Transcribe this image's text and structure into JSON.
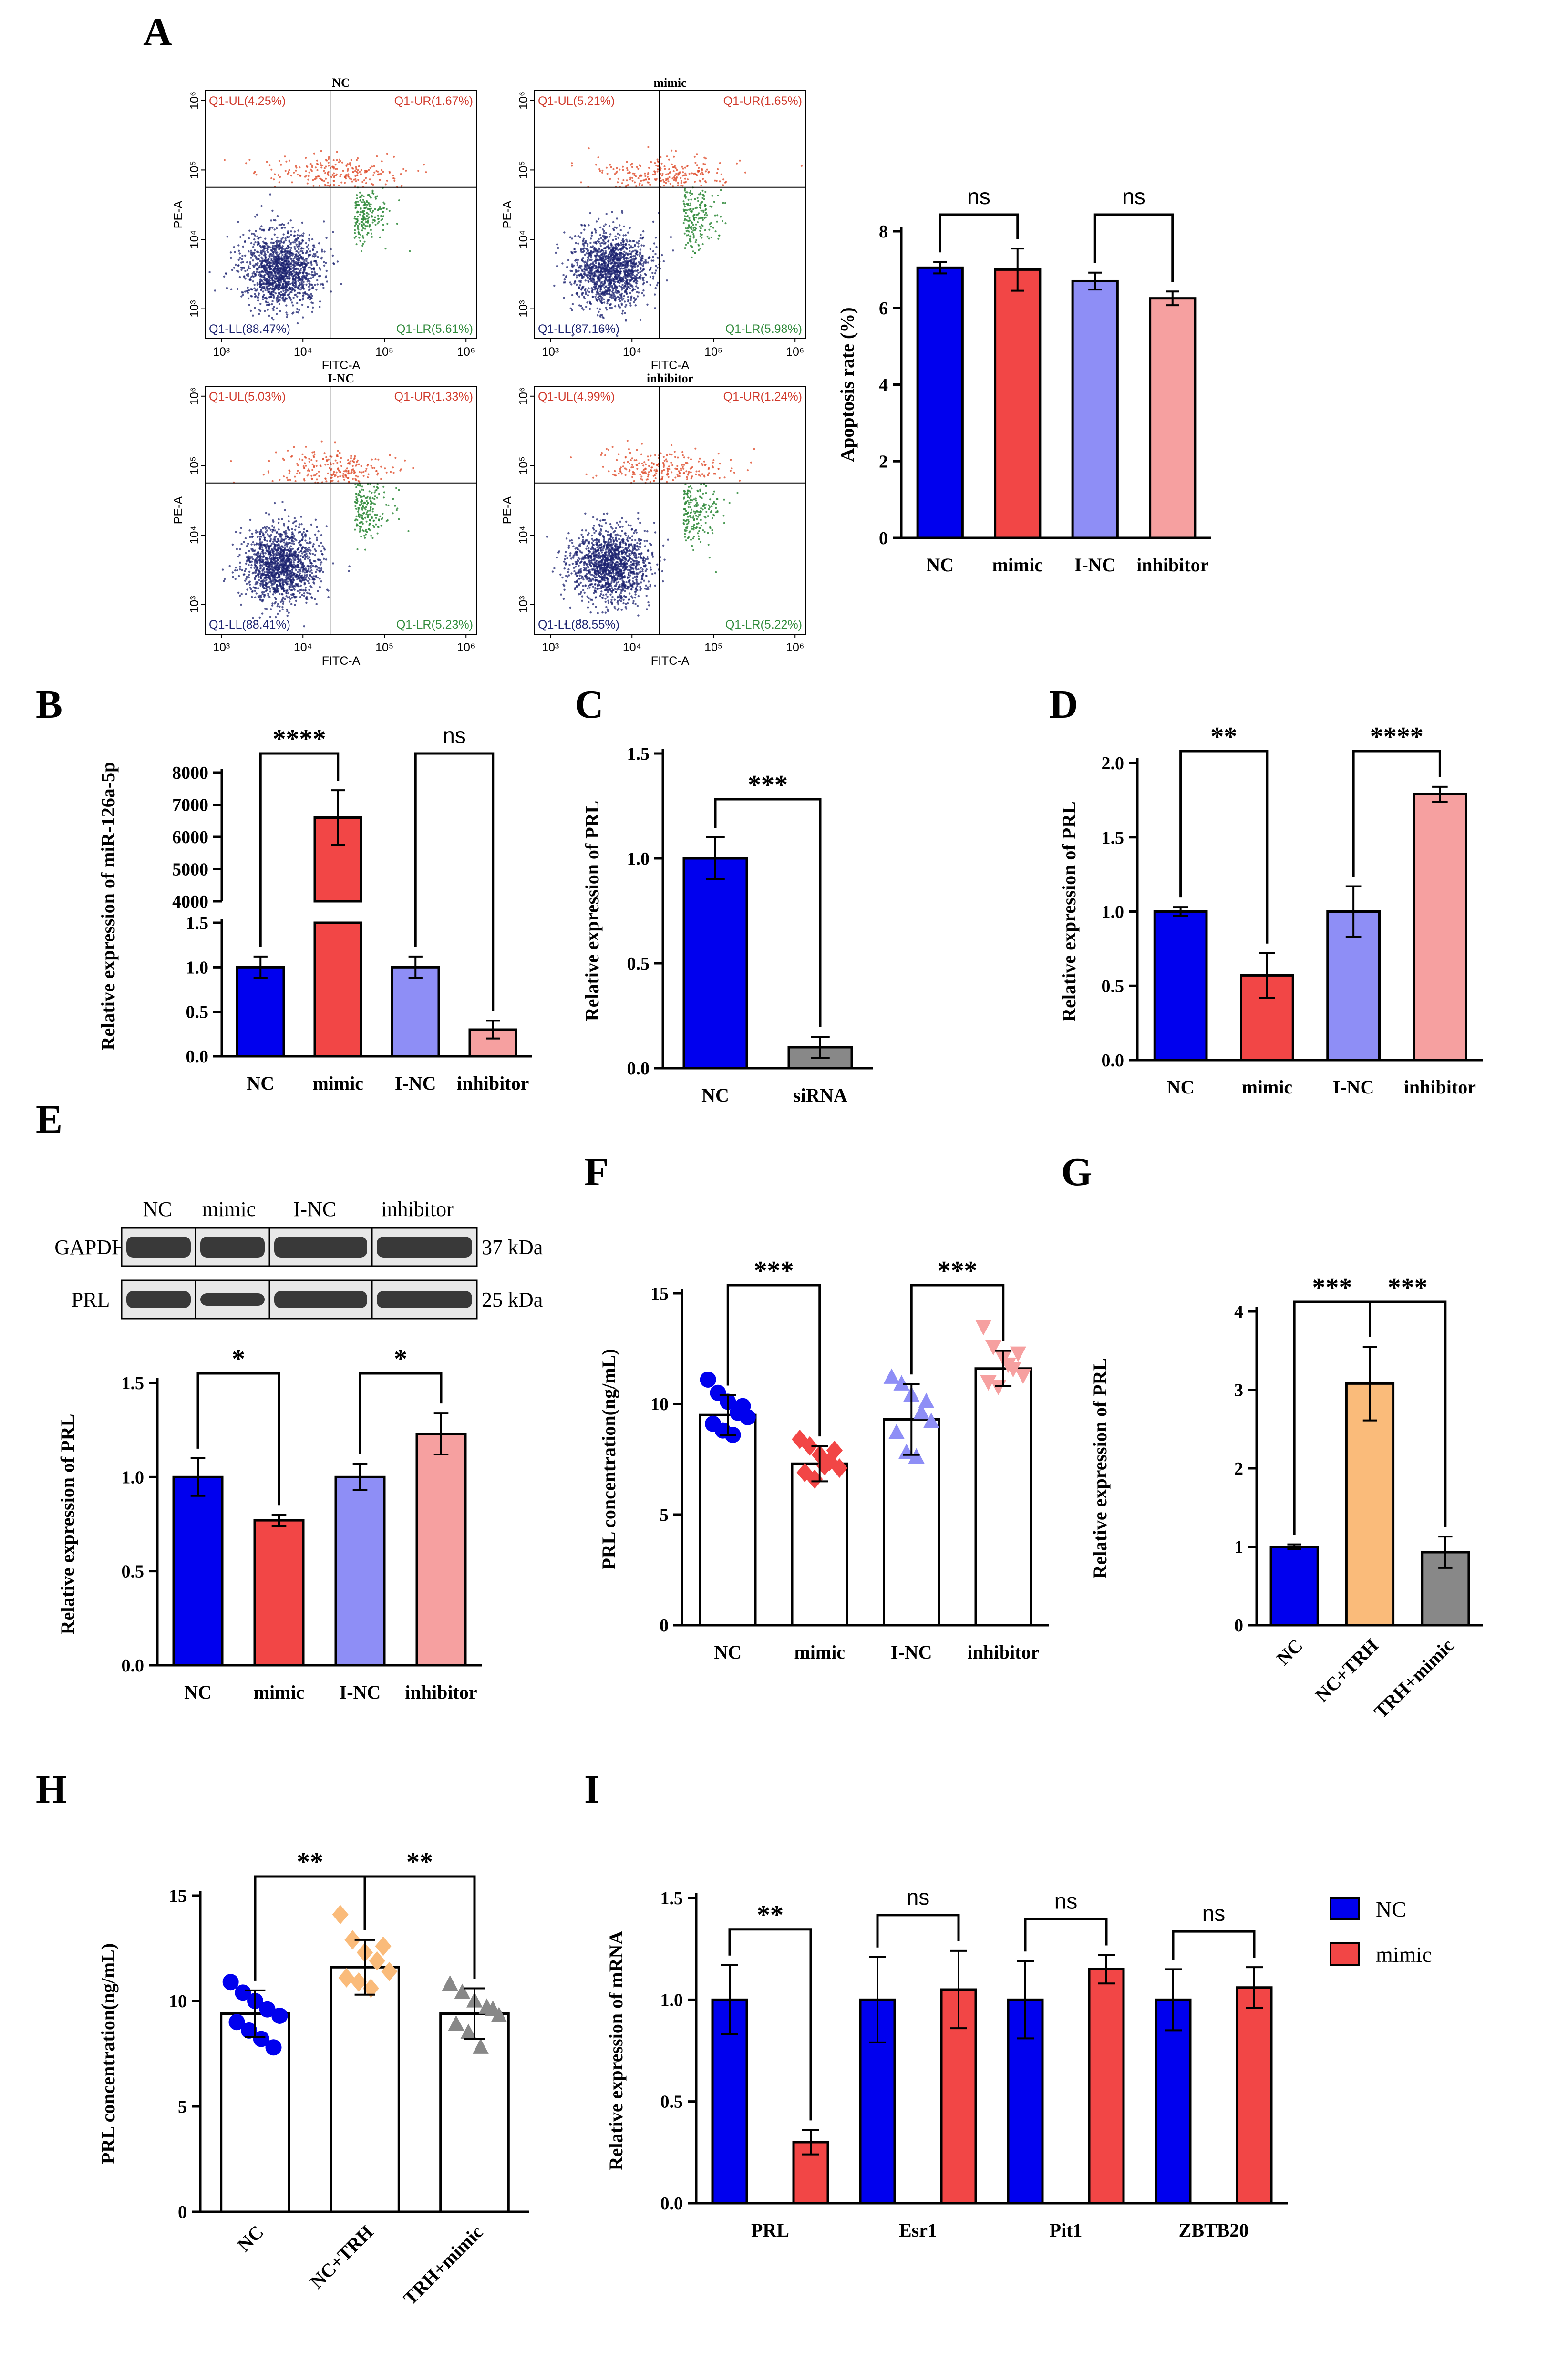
{
  "panels": {
    "A": "A",
    "B": "B",
    "C": "C",
    "D": "D",
    "E": "E",
    "F": "F",
    "G": "G",
    "H": "H",
    "I": "I"
  },
  "colors": {
    "NC": "#0000ee",
    "mimic": "#f24646",
    "I-NC": "#8e8ef6",
    "inhibitor": "#f6a0a0",
    "NC+TRH": "#fabb7a",
    "late_apoptosis": "#e05030",
    "early_apoptosis": "#2f8a3a",
    "live": "#1c2370"
  },
  "flow_plots": [
    {
      "title": "NC",
      "UL": "Q1-UL(4.25%)",
      "UR": "Q1-UR(1.67%)",
      "LL": "Q1-LL(88.47%)",
      "LR": "Q1-LR(5.61%)"
    },
    {
      "title": "mimic",
      "UL": "Q1-UL(5.21%)",
      "UR": "Q1-UR(1.65%)",
      "LL": "Q1-LL(87.16%)",
      "LR": "Q1-LR(5.98%)"
    },
    {
      "title": "I-NC",
      "UL": "Q1-UL(5.03%)",
      "UR": "Q1-UR(1.33%)",
      "LL": "Q1-LL(88.41%)",
      "LR": "Q1-LR(5.23%)"
    },
    {
      "title": "inhibitor",
      "UL": "Q1-UL(4.99%)",
      "UR": "Q1-UR(1.24%)",
      "LL": "Q1-LL(88.55%)",
      "LR": "Q1-LR(5.22%)"
    }
  ],
  "flow_axes": {
    "x": "FITC-A",
    "y": "PE-A",
    "ticks": [
      "10³",
      "10⁴",
      "10⁵",
      "10⁶"
    ]
  },
  "western": {
    "lanes": [
      "NC",
      "mimic",
      "I-NC",
      "inhibitor"
    ],
    "rows": [
      {
        "name": "GAPDH",
        "size": "37 kDa"
      },
      {
        "name": "PRL",
        "size": "25 kDa"
      }
    ]
  },
  "chart_data": [
    {
      "id": "A",
      "type": "bar",
      "categories": [
        "NC",
        "mimic",
        "I-NC",
        "inhibitor"
      ],
      "values": [
        7.05,
        7.0,
        6.7,
        6.25
      ],
      "errors": [
        0.15,
        0.55,
        0.22,
        0.18
      ],
      "ylabel": "Apoptosis rate (%)",
      "ylim": [
        0,
        8
      ],
      "yticks": [
        0,
        2,
        4,
        6,
        8
      ],
      "comparisons": [
        {
          "a": 0,
          "b": 1,
          "label": "ns"
        },
        {
          "a": 2,
          "b": 3,
          "label": "ns"
        }
      ]
    },
    {
      "id": "B",
      "type": "bar",
      "broken_axis": true,
      "categories": [
        "NC",
        "mimic",
        "I-NC",
        "inhibitor"
      ],
      "values": [
        1.0,
        6600,
        1.0,
        0.3
      ],
      "errors": [
        0.12,
        850,
        0.12,
        0.1
      ],
      "ylabel": "Relative expression of miR-126a-5p",
      "lower_ylim": [
        0,
        1.5
      ],
      "upper_ylim": [
        4000,
        8000
      ],
      "lower_ticks": [
        "0.0",
        "0.5",
        "1.0",
        "1.5"
      ],
      "upper_ticks": [
        "4000",
        "5000",
        "6000",
        "7000",
        "8000"
      ],
      "comparisons": [
        {
          "a": 0,
          "b": 1,
          "label": "****"
        },
        {
          "a": 2,
          "b": 3,
          "label": "ns"
        }
      ]
    },
    {
      "id": "C",
      "type": "bar",
      "categories": [
        "NC",
        "siRNA"
      ],
      "values": [
        1.0,
        0.1
      ],
      "errors": [
        0.1,
        0.05
      ],
      "ylabel": "Relative expression of PRL",
      "ylim": [
        0,
        1.5
      ],
      "yticks": [
        "0.0",
        "0.5",
        "1.0",
        "1.5"
      ],
      "comparisons": [
        {
          "a": 0,
          "b": 1,
          "label": "***"
        }
      ]
    },
    {
      "id": "D",
      "type": "bar",
      "categories": [
        "NC",
        "mimic",
        "I-NC",
        "inhibitor"
      ],
      "values": [
        1.0,
        0.57,
        1.0,
        1.79
      ],
      "errors": [
        0.03,
        0.15,
        0.17,
        0.05
      ],
      "ylabel": "Relative expression of PRL",
      "ylim": [
        0,
        2.0
      ],
      "yticks": [
        "0.0",
        "0.5",
        "1.0",
        "1.5",
        "2.0"
      ],
      "comparisons": [
        {
          "a": 0,
          "b": 1,
          "label": "**"
        },
        {
          "a": 2,
          "b": 3,
          "label": "****"
        }
      ]
    },
    {
      "id": "E",
      "type": "bar",
      "categories": [
        "NC",
        "mimic",
        "I-NC",
        "inhibitor"
      ],
      "values": [
        1.0,
        0.77,
        1.0,
        1.23
      ],
      "errors": [
        0.1,
        0.03,
        0.07,
        0.11
      ],
      "ylabel": "Relative expression of PRL",
      "ylim": [
        0,
        1.5
      ],
      "yticks": [
        "0.0",
        "0.5",
        "1.0",
        "1.5"
      ],
      "comparisons": [
        {
          "a": 0,
          "b": 1,
          "label": "*"
        },
        {
          "a": 2,
          "b": 3,
          "label": "*"
        }
      ]
    },
    {
      "id": "F",
      "type": "scatter_bar",
      "categories": [
        "NC",
        "mimic",
        "I-NC",
        "inhibitor"
      ],
      "values": [
        9.5,
        7.3,
        9.3,
        11.6
      ],
      "errors": [
        0.9,
        0.8,
        1.6,
        0.8
      ],
      "points": [
        [
          11.1,
          10.5,
          10.1,
          9.6,
          9.4,
          9.1,
          8.8,
          8.6,
          9.9
        ],
        [
          8.4,
          8.1,
          7.7,
          7.4,
          7.1,
          6.9,
          6.6,
          7.2,
          7.9
        ],
        [
          11.2,
          10.9,
          10.4,
          9.6,
          9.2,
          8.7,
          7.8,
          7.6,
          10.1
        ],
        [
          13.5,
          12.6,
          12.1,
          11.6,
          11.3,
          11.0,
          10.8,
          11.8,
          12.3
        ]
      ],
      "markers": [
        "circle",
        "diamond",
        "triangle",
        "triangle-down"
      ],
      "ylabel": "PRL concentration(ng/mL)",
      "ylim": [
        0,
        15
      ],
      "yticks": [
        "0",
        "5",
        "10",
        "15"
      ],
      "comparisons": [
        {
          "a": 0,
          "b": 1,
          "label": "***"
        },
        {
          "a": 2,
          "b": 3,
          "label": "***"
        }
      ]
    },
    {
      "id": "G",
      "type": "bar",
      "categories": [
        "NC",
        "NC+TRH",
        "TRH+mimic"
      ],
      "values": [
        1.0,
        3.08,
        0.93
      ],
      "errors": [
        0.03,
        0.47,
        0.2
      ],
      "ylabel": "Relative expression of PRL",
      "ylim": [
        0,
        4
      ],
      "yticks": [
        "0",
        "1",
        "2",
        "3",
        "4"
      ],
      "comparisons": [
        {
          "a": 0,
          "b": 1,
          "label": "***"
        },
        {
          "a": 1,
          "b": 2,
          "label": "***"
        }
      ]
    },
    {
      "id": "H",
      "type": "scatter_bar",
      "categories": [
        "NC",
        "NC+TRH",
        "TRH+mimic"
      ],
      "values": [
        9.4,
        11.6,
        9.4
      ],
      "errors": [
        1.1,
        1.3,
        1.2
      ],
      "points": [
        [
          10.9,
          10.4,
          10.0,
          9.6,
          9.3,
          9.0,
          8.6,
          8.2,
          7.8
        ],
        [
          14.1,
          12.9,
          12.3,
          11.9,
          11.4,
          11.1,
          10.9,
          10.6,
          12.6
        ],
        [
          10.8,
          10.4,
          10.0,
          9.7,
          9.3,
          8.9,
          8.5,
          7.8,
          9.6
        ]
      ],
      "markers": [
        "circle",
        "diamond",
        "triangle"
      ],
      "ylabel": "PRL concentration(ng/mL)",
      "ylim": [
        0,
        15
      ],
      "yticks": [
        "0",
        "5",
        "10",
        "15"
      ],
      "comparisons": [
        {
          "a": 0,
          "b": 1,
          "label": "**"
        },
        {
          "a": 1,
          "b": 2,
          "label": "**"
        }
      ]
    },
    {
      "id": "I",
      "type": "grouped_bar",
      "categories": [
        "PRL",
        "Esr1",
        "Pit1",
        "ZBTB20"
      ],
      "series": [
        {
          "name": "NC",
          "values": [
            1.0,
            1.0,
            1.0,
            1.0
          ],
          "errors": [
            0.17,
            0.21,
            0.19,
            0.15
          ]
        },
        {
          "name": "mimic",
          "values": [
            0.3,
            1.05,
            1.15,
            1.06
          ],
          "errors": [
            0.06,
            0.19,
            0.07,
            0.1
          ]
        }
      ],
      "ylabel": "Relative expression of mRNA",
      "ylim": [
        0,
        1.5
      ],
      "yticks": [
        "0.0",
        "0.5",
        "1.0",
        "1.5"
      ],
      "legend": "right",
      "comparisons": [
        {
          "g": 0,
          "label": "**"
        },
        {
          "g": 1,
          "label": "ns"
        },
        {
          "g": 2,
          "label": "ns"
        },
        {
          "g": 3,
          "label": "ns"
        }
      ]
    }
  ]
}
